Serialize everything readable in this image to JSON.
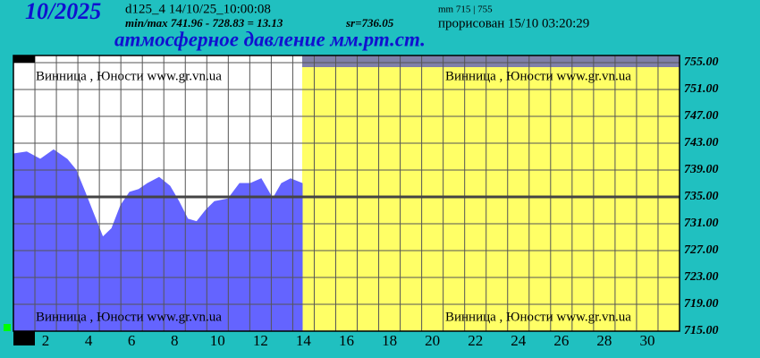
{
  "chart_data": {
    "type": "area",
    "period": "10/2025",
    "station_info": "d125_4   14/10/25_10:00:08",
    "min_max": "min/max   741.96 - 728.83 = 13.13",
    "mean": "sr=736.05",
    "range_info": "mm 715 | 755",
    "drawn_time": "прорисован 15/10 03:20:29",
    "title": "атмосферное давление мм.рт.ст.",
    "watermark": "Винница , Юности  www.gr.vn.ua",
    "color": "#6464ff",
    "x": [
      1.0,
      1.62,
      2.25,
      2.87,
      3.5,
      3.91,
      4.33,
      4.75,
      5.16,
      5.58,
      5.99,
      6.41,
      6.83,
      7.24,
      7.78,
      8.28,
      8.7,
      9.11,
      9.53,
      9.95,
      10.36,
      10.99,
      11.53,
      12.03,
      12.53,
      13.07,
      13.48,
      13.9,
      14.44
    ],
    "values": [
      741.4,
      741.7,
      740.6,
      742.0,
      740.6,
      739.0,
      735.7,
      732.3,
      729.0,
      730.3,
      733.7,
      735.7,
      736.1,
      737.0,
      737.9,
      736.6,
      734.3,
      731.7,
      731.3,
      733.0,
      734.3,
      734.7,
      737.0,
      737.0,
      737.7,
      734.7,
      737.0,
      737.7,
      737.0
    ],
    "xlim": [
      1,
      32
    ],
    "xticks": [
      2,
      4,
      6,
      8,
      10,
      12,
      14,
      16,
      18,
      20,
      22,
      24,
      26,
      28,
      30
    ],
    "ylim": [
      715,
      755
    ],
    "yticks": [
      {
        "value": 715,
        "label": "715.00"
      },
      {
        "value": 719,
        "label": "719.00"
      },
      {
        "value": 723,
        "label": "723.00"
      },
      {
        "value": 727,
        "label": "727.00"
      },
      {
        "value": 731,
        "label": "731.00"
      },
      {
        "value": 735,
        "label": "735.00"
      },
      {
        "value": 739,
        "label": "739.00"
      },
      {
        "value": 743,
        "label": "743.00"
      },
      {
        "value": 747,
        "label": "747.00"
      },
      {
        "value": 751,
        "label": "751.00"
      },
      {
        "value": 755,
        "label": "755.00"
      }
    ],
    "grid": true
  }
}
